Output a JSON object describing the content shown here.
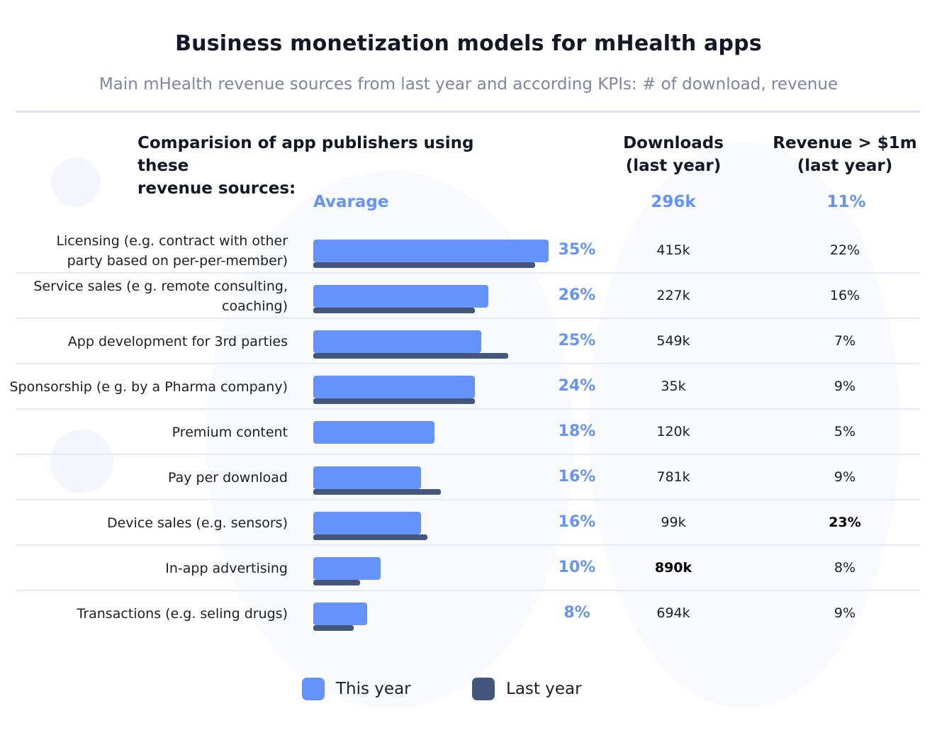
{
  "title": "Business monetization models for mHealth apps",
  "subtitle": "Main mHealth revenue sources from last year and according KPIs: # of download, revenue",
  "columns": {
    "left_line1": "Comparision of app publishers using these",
    "left_line2": "revenue sources:",
    "downloads_line1": "Downloads",
    "downloads_line2": "(last year)",
    "revenue_line1": "Revenue > $1m",
    "revenue_line2": "(last year)"
  },
  "average": {
    "label": "Avarage",
    "downloads": "296k",
    "revenue": "11%"
  },
  "legend": [
    {
      "label": "This year",
      "color": "#6693fb"
    },
    {
      "label": "Last year",
      "color": "#45567b"
    }
  ],
  "colors": {
    "this_year": "#6693fb",
    "last_year": "#45567b",
    "accent_text": "#6693fb"
  },
  "chart_data": {
    "type": "bar",
    "orientation": "horizontal",
    "value_unit": "%",
    "categories": [
      "Licensing (e.g. contract with other party based on per-per-member)",
      "Service sales (e g. remote consulting, coaching)",
      "App development for 3rd parties",
      "Sponsorship (e g. by a Pharma company)",
      "Premium content",
      "Pay per download",
      "Device sales (e.g. sensors)",
      "In-app advertising",
      "Transactions (e.g. seling drugs)"
    ],
    "label_lines": [
      [
        "Licensing (e.g. contract with other",
        "party based on per-per-member)"
      ],
      [
        "Service sales (e g. remote consulting,",
        "coaching)"
      ],
      [
        "App development for 3rd parties"
      ],
      [
        "Sponsorship (e g. by a Pharma company)"
      ],
      [
        "Premium content"
      ],
      [
        "Pay per download"
      ],
      [
        "Device sales (e.g. sensors)"
      ],
      [
        "In-app advertising"
      ],
      [
        "Transactions (e.g. seling drugs)"
      ]
    ],
    "series": [
      {
        "name": "This year",
        "values": [
          35,
          26,
          25,
          24,
          18,
          16,
          16,
          10,
          8
        ]
      },
      {
        "name": "Last year",
        "values": [
          33,
          24,
          29,
          24,
          0,
          19,
          17,
          7,
          6
        ]
      }
    ],
    "value_labels": [
      "35%",
      "26%",
      "25%",
      "24%",
      "18%",
      "16%",
      "16%",
      "10%",
      "8%"
    ],
    "downloads": [
      "415k",
      "227k",
      "549k",
      "35k",
      "120k",
      "781k",
      "99k",
      "890k",
      "694k"
    ],
    "revenue": [
      "22%",
      "16%",
      "7%",
      "9%",
      "5%",
      "9%",
      "23%",
      "8%",
      "9%"
    ],
    "highlight_downloads_index": 7,
    "highlight_revenue_index": 6,
    "xlim": [
      0,
      35
    ],
    "grid": false,
    "legend_position": "bottom-center"
  }
}
